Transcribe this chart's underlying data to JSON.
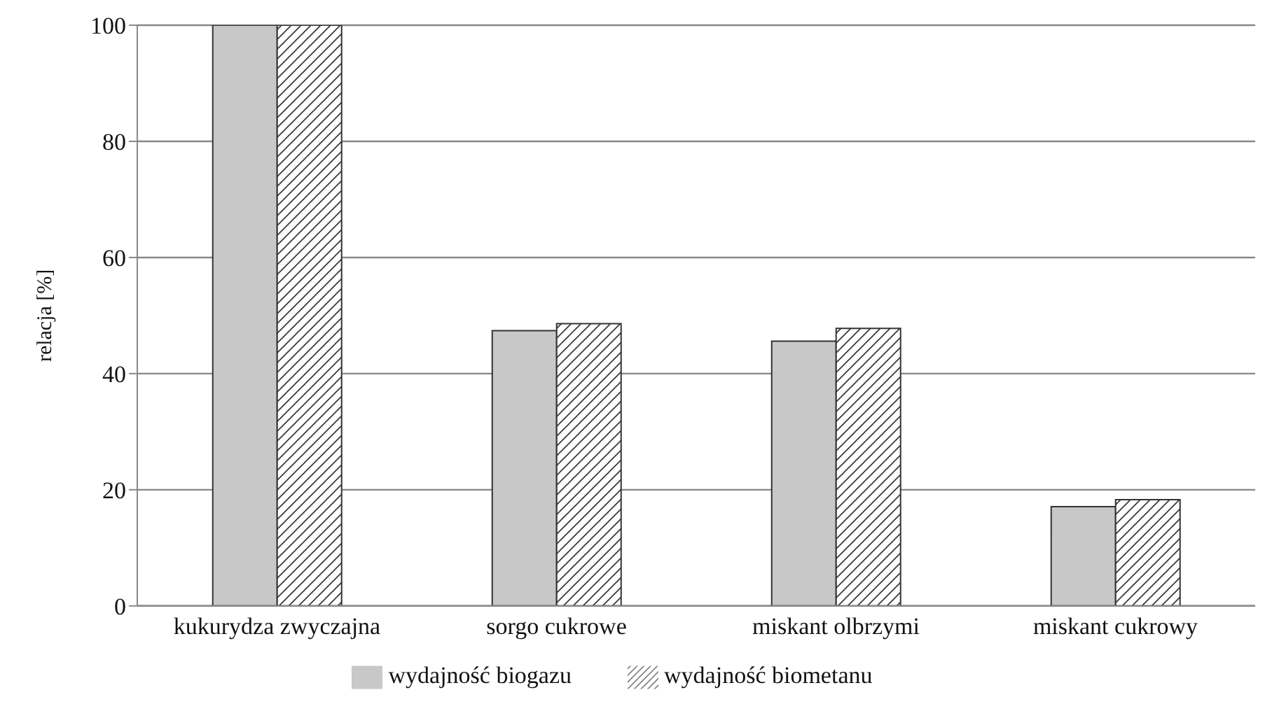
{
  "chart_data": {
    "type": "bar",
    "ylabel": "relacja [%]",
    "categories": [
      "kukurydza zwyczajna",
      "sorgo cukrowe",
      "miskant olbrzymi",
      "miskant cukrowy"
    ],
    "series": [
      {
        "name": "wydajność biogazu",
        "color": "#c8c8c8",
        "values": [
          100,
          47.4,
          45.6,
          17.1
        ]
      },
      {
        "name": "wydajność biometanu",
        "color": "#333333",
        "values": [
          100,
          48.6,
          47.8,
          18.3
        ]
      }
    ],
    "ylim": [
      0,
      100
    ],
    "yticks": [
      0,
      20,
      40,
      60,
      80,
      100
    ],
    "grid": "y",
    "legend": "bottom"
  }
}
